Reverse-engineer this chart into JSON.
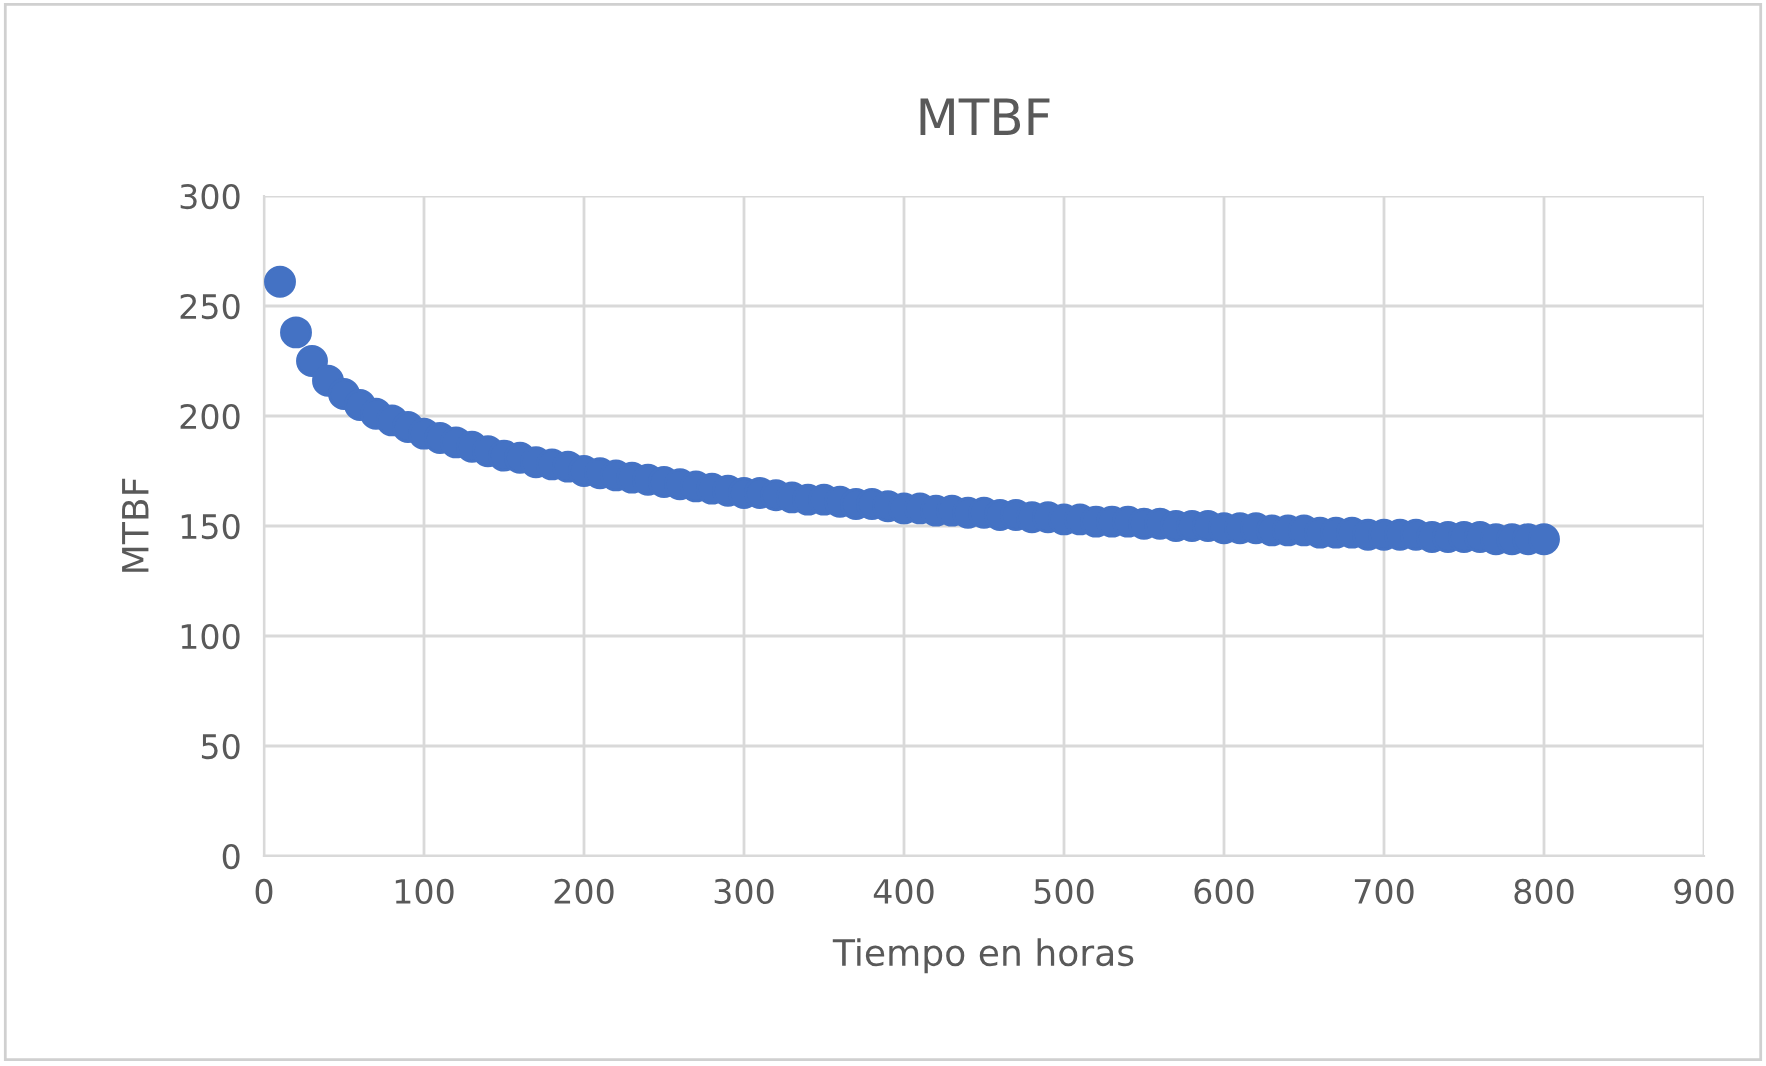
{
  "chart_data": {
    "type": "scatter",
    "title": "MTBF",
    "xlabel": "Tiempo en horas",
    "ylabel": "MTBF",
    "x": [
      10,
      20,
      30,
      40,
      50,
      60,
      70,
      80,
      90,
      100,
      110,
      120,
      130,
      140,
      150,
      160,
      170,
      180,
      190,
      200,
      210,
      220,
      230,
      240,
      250,
      260,
      270,
      280,
      290,
      300,
      310,
      320,
      330,
      340,
      350,
      360,
      370,
      380,
      390,
      400,
      410,
      420,
      430,
      440,
      450,
      460,
      470,
      480,
      490,
      500,
      510,
      520,
      530,
      540,
      550,
      560,
      570,
      580,
      590,
      600,
      610,
      620,
      630,
      640,
      650,
      660,
      670,
      680,
      690,
      700,
      710,
      720,
      730,
      740,
      750,
      760,
      770,
      780,
      790,
      800
    ],
    "series": [
      {
        "color": "#4472c4",
        "values": [
          261,
          238,
          225,
          216,
          210,
          205,
          201,
          198,
          195,
          192,
          190,
          188,
          186,
          184,
          182,
          181,
          179,
          178,
          177,
          175,
          174,
          173,
          172,
          171,
          170,
          169,
          168,
          167,
          166,
          165,
          165,
          164,
          163,
          162,
          162,
          161,
          160,
          160,
          159,
          158,
          158,
          157,
          157,
          156,
          156,
          155,
          155,
          154,
          154,
          153,
          153,
          152,
          152,
          152,
          151,
          151,
          150,
          150,
          150,
          149,
          149,
          149,
          148,
          148,
          148,
          147,
          147,
          147,
          146,
          146,
          146,
          146,
          145,
          145,
          145,
          145,
          144,
          144,
          144,
          144
        ]
      }
    ],
    "xlim": [
      0,
      900
    ],
    "xticks": [
      0,
      100,
      200,
      300,
      400,
      500,
      600,
      700,
      800,
      900
    ],
    "ylim": [
      0,
      300
    ],
    "yticks": [
      0,
      50,
      100,
      150,
      200,
      250,
      300
    ],
    "grid": true,
    "marker": "circle",
    "legend": false
  }
}
